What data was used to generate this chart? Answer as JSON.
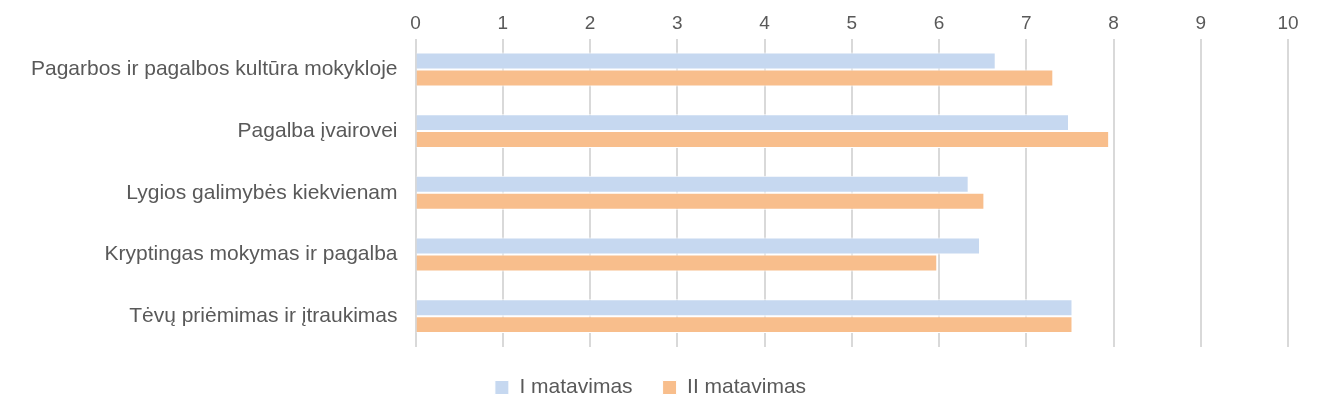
{
  "chart_data": {
    "type": "bar",
    "orientation": "horizontal",
    "categories": [
      "Pagarbos ir pagalbos kultūra mokykloje",
      "Pagalba įvairovei",
      "Lygios galimybės kiekvienam",
      "Kryptingas mokymas ir pagalba",
      "Tėvų priėmimas ir įtraukimas"
    ],
    "series": [
      {
        "name": "I matavimas",
        "color": "#c6d8f0",
        "values": [
          6.65,
          7.49,
          6.34,
          6.47,
          7.53
        ]
      },
      {
        "name": "II matavimas",
        "color": "#f8be8c",
        "values": [
          7.31,
          7.95,
          6.52,
          5.98,
          7.53
        ]
      }
    ],
    "xlim": [
      0,
      10
    ],
    "xticks": [
      0,
      1,
      2,
      3,
      4,
      5,
      6,
      7,
      8,
      9,
      10
    ],
    "grid": "x",
    "legend": "bottom"
  }
}
